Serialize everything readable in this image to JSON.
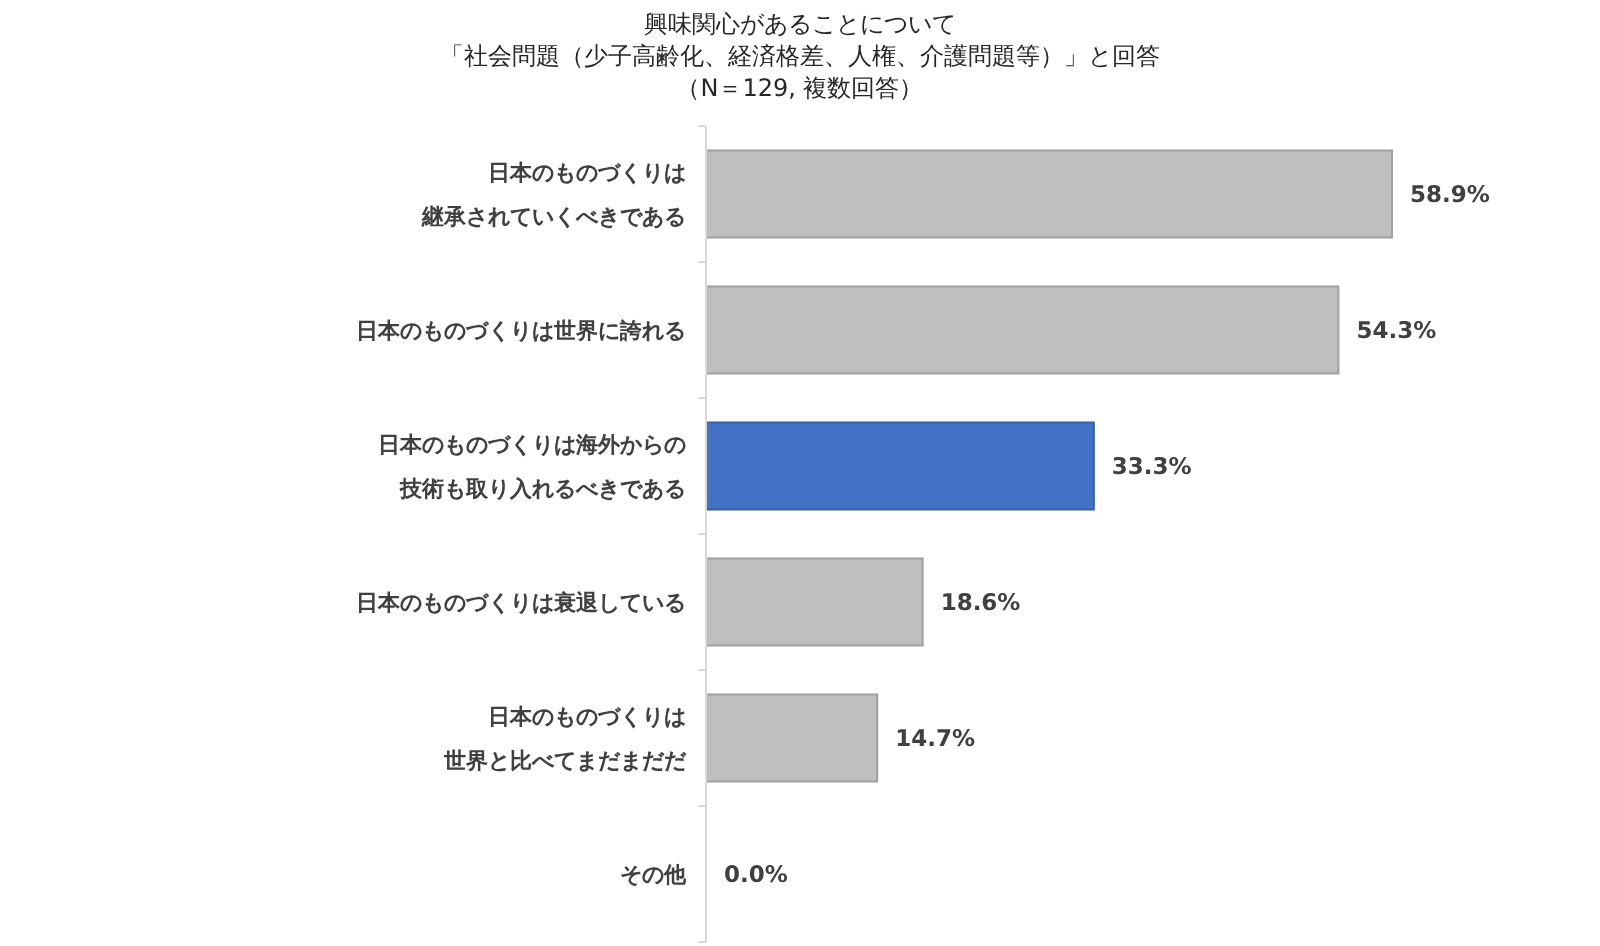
{
  "chart_data": {
    "type": "bar",
    "orientation": "horizontal",
    "title": "興味関心があることについて",
    "subtitle": "「社会問題（少子高齢化、経済格差、人権、介護問題等）」と回答",
    "annotations": [
      "（N＝129, 複数回答）"
    ],
    "categories": [
      "日本のものづくりは継承されていくべきである",
      "日本のものづくりは世界に誇れる",
      "日本のものづくりは海外からの技術も取り入れるべきである",
      "日本のものづくりは衰退している",
      "日本のものづくりは世界と比べてまだまだだ",
      "その他"
    ],
    "values": [
      58.9,
      54.3,
      33.3,
      18.6,
      14.7,
      0.0
    ],
    "value_labels": [
      "58.9%",
      "54.3%",
      "33.3%",
      "18.6%",
      "14.7%",
      "0.0%"
    ],
    "colors": [
      "#bfbfbf",
      "#bfbfbf",
      "#4472c4",
      "#bfbfbf",
      "#bfbfbf",
      "#bfbfbf"
    ]
  }
}
